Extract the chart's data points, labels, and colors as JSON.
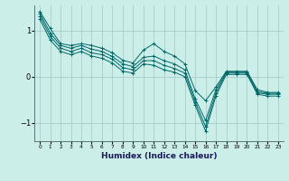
{
  "title": "",
  "xlabel": "Humidex (Indice chaleur)",
  "bg_color": "#cceee8",
  "grid_color": "#aacccc",
  "line_color": "#006868",
  "xlim": [
    -0.5,
    23.5
  ],
  "ylim": [
    -1.4,
    1.55
  ],
  "yticks": [
    -1,
    0,
    1
  ],
  "xticks": [
    0,
    1,
    2,
    3,
    4,
    5,
    6,
    7,
    8,
    9,
    10,
    11,
    12,
    13,
    14,
    15,
    16,
    17,
    18,
    19,
    20,
    21,
    22,
    23
  ],
  "series": [
    [
      1.42,
      1.05,
      0.72,
      0.68,
      0.72,
      0.68,
      0.62,
      0.52,
      0.36,
      0.3,
      0.58,
      0.72,
      0.55,
      0.45,
      0.28,
      -0.3,
      -0.52,
      -0.22,
      0.12,
      0.12,
      0.12,
      -0.28,
      -0.34,
      -0.34
    ],
    [
      1.38,
      0.95,
      0.68,
      0.62,
      0.68,
      0.6,
      0.55,
      0.44,
      0.28,
      0.22,
      0.42,
      0.45,
      0.35,
      0.28,
      0.15,
      -0.48,
      -0.95,
      -0.28,
      0.1,
      0.1,
      0.1,
      -0.32,
      -0.36,
      -0.36
    ],
    [
      1.32,
      0.88,
      0.62,
      0.55,
      0.62,
      0.52,
      0.48,
      0.38,
      0.2,
      0.15,
      0.35,
      0.35,
      0.25,
      0.18,
      0.08,
      -0.55,
      -1.08,
      -0.35,
      0.08,
      0.08,
      0.08,
      -0.35,
      -0.38,
      -0.38
    ],
    [
      1.25,
      0.8,
      0.55,
      0.48,
      0.55,
      0.45,
      0.4,
      0.3,
      0.12,
      0.08,
      0.28,
      0.25,
      0.15,
      0.1,
      0.0,
      -0.62,
      -1.18,
      -0.42,
      0.05,
      0.05,
      0.05,
      -0.38,
      -0.42,
      -0.42
    ]
  ]
}
